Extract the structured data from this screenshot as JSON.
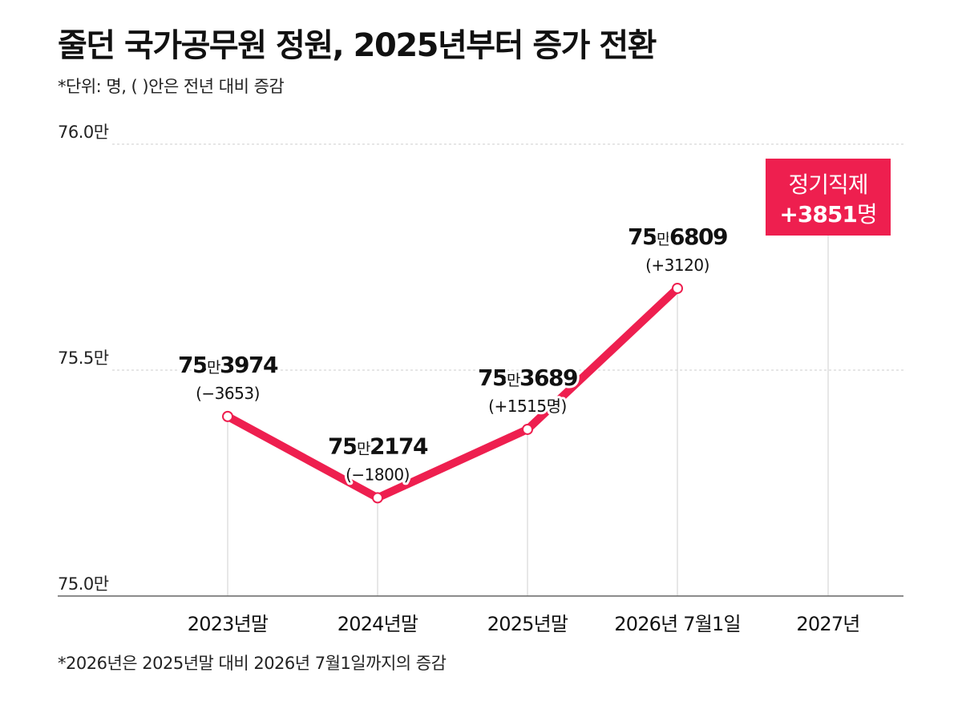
{
  "title": "줄던 국가공무원 정원, 2025년부터 증가 전환",
  "subtitle": "*단위: 명, ( )안은 전년 대비 증감",
  "footnote": "*2026년은 2025년말 대비 2026년 7월1일까지의 증감",
  "colors": {
    "accent": "#ee1f4f",
    "grid": "#cccccc",
    "axis": "#666666",
    "text": "#111111"
  },
  "chart_data": {
    "type": "line",
    "categories": [
      "2023년말",
      "2024년말",
      "2025년말",
      "2026년 7월1일",
      "2027년"
    ],
    "values": [
      753974,
      752174,
      753689,
      756809,
      null
    ],
    "ylim": [
      750000,
      760000
    ],
    "y_ticks": [
      {
        "value": 760000,
        "label": "76.0만"
      },
      {
        "value": 755000,
        "label": "75.5만"
      },
      {
        "value": 750000,
        "label": "75.0만"
      }
    ],
    "grid": true,
    "point_labels": [
      {
        "main": "75",
        "unit": "만",
        "rest": "3974",
        "change": "(−3653)"
      },
      {
        "main": "75",
        "unit": "만",
        "rest": "2174",
        "change": "(−1800)"
      },
      {
        "main": "75",
        "unit": "만",
        "rest": "3689",
        "change": "(+1515명)"
      },
      {
        "main": "75",
        "unit": "만",
        "rest": "6809",
        "change": "(+3120)"
      }
    ],
    "annotation": {
      "category": "2027년",
      "line1": "정기직제",
      "line2_bold": "+3851",
      "line2_unit": "명"
    }
  }
}
